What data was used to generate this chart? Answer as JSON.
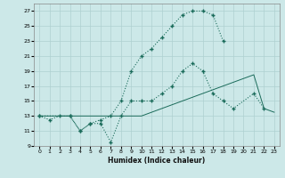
{
  "xlabel": "Humidex (Indice chaleur)",
  "bg_color": "#cce8e8",
  "grid_color": "#aed0d0",
  "line_color": "#1a6b5a",
  "xlim": [
    -0.5,
    23.5
  ],
  "ylim": [
    9,
    28
  ],
  "xticks": [
    0,
    1,
    2,
    3,
    4,
    5,
    6,
    7,
    8,
    9,
    10,
    11,
    12,
    13,
    14,
    15,
    16,
    17,
    18,
    19,
    20,
    21,
    22,
    23
  ],
  "yticks": [
    9,
    11,
    13,
    15,
    17,
    19,
    21,
    23,
    25,
    27
  ],
  "line1_x": [
    0,
    1,
    2,
    3,
    4,
    5,
    6,
    7,
    8,
    9,
    10,
    11,
    12,
    13,
    14,
    15,
    16,
    17,
    18
  ],
  "line1_y": [
    13,
    12.5,
    13,
    13,
    11,
    12,
    12.5,
    13,
    15,
    19,
    21,
    22,
    23.5,
    25,
    26.5,
    27,
    27,
    26.5,
    23
  ],
  "line2_x": [
    0,
    3,
    4,
    5,
    6,
    7,
    8,
    9,
    10,
    11,
    12,
    13,
    14,
    15,
    16,
    17,
    18,
    19,
    21,
    22
  ],
  "line2_y": [
    13,
    13,
    11,
    12,
    12,
    9.5,
    13,
    15,
    15,
    15,
    16,
    17,
    19,
    20,
    19,
    16,
    15,
    14,
    16,
    14
  ],
  "line3_x": [
    0,
    10,
    11,
    12,
    13,
    14,
    15,
    16,
    17,
    18,
    19,
    20,
    21,
    22,
    23
  ],
  "line3_y": [
    13,
    13,
    13.5,
    14,
    14.5,
    15,
    15.5,
    16,
    16.5,
    17,
    17.5,
    18,
    18.5,
    14,
    13.5
  ]
}
